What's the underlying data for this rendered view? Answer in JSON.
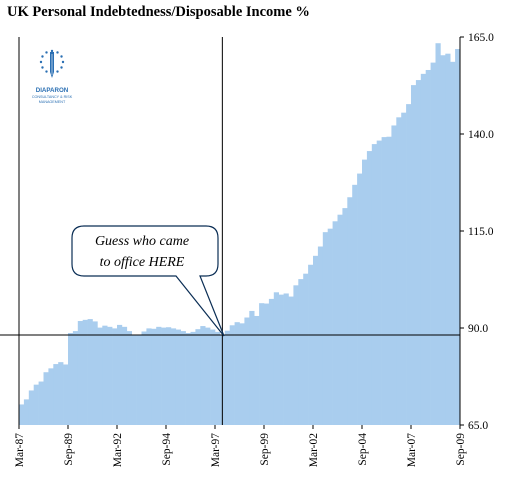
{
  "chart_data": {
    "type": "bar",
    "title": "UK Personal Indebtedness/Disposable Income %",
    "bar_color": "#a9cdee",
    "y_axis": {
      "side": "right",
      "ylim": [
        65.0,
        165.0
      ],
      "ticks": [
        "65.0",
        "90.0",
        "115.0",
        "140.0",
        "165.0"
      ]
    },
    "x_ticks": [
      "Mar-87",
      "Sep-89",
      "Mar-92",
      "Sep-94",
      "Mar-97",
      "Sep-99",
      "Mar-02",
      "Sep-04",
      "Mar-07",
      "Sep-09"
    ],
    "x": [
      "Mar-87",
      "Jun-87",
      "Sep-87",
      "Dec-87",
      "Mar-88",
      "Jun-88",
      "Sep-88",
      "Dec-88",
      "Mar-89",
      "Jun-89",
      "Sep-89",
      "Dec-89",
      "Mar-90",
      "Jun-90",
      "Sep-90",
      "Dec-90",
      "Mar-91",
      "Jun-91",
      "Sep-91",
      "Dec-91",
      "Mar-92",
      "Jun-92",
      "Sep-92",
      "Dec-92",
      "Mar-93",
      "Jun-93",
      "Sep-93",
      "Dec-93",
      "Mar-94",
      "Jun-94",
      "Sep-94",
      "Dec-94",
      "Mar-95",
      "Jun-95",
      "Sep-95",
      "Dec-95",
      "Mar-96",
      "Jun-96",
      "Sep-96",
      "Dec-96",
      "Mar-97",
      "Jun-97",
      "Sep-97",
      "Dec-97",
      "Mar-98",
      "Jun-98",
      "Sep-98",
      "Dec-98",
      "Mar-99",
      "Jun-99",
      "Sep-99",
      "Dec-99",
      "Mar-00",
      "Jun-00",
      "Sep-00",
      "Dec-00",
      "Mar-01",
      "Jun-01",
      "Sep-01",
      "Dec-01",
      "Mar-02",
      "Jun-02",
      "Sep-02",
      "Dec-02",
      "Mar-03",
      "Jun-03",
      "Sep-03",
      "Dec-03",
      "Mar-04",
      "Jun-04",
      "Sep-04",
      "Dec-04",
      "Mar-05",
      "Jun-05",
      "Sep-05",
      "Dec-05",
      "Mar-06",
      "Jun-06",
      "Sep-06",
      "Dec-06",
      "Mar-07",
      "Jun-07",
      "Sep-07",
      "Dec-07",
      "Mar-08",
      "Jun-08",
      "Sep-08",
      "Dec-08",
      "Mar-09",
      "Jun-09"
    ],
    "values": [
      70.3,
      71.6,
      73.9,
      75.4,
      76.2,
      78.6,
      79.6,
      80.7,
      81.2,
      80.6,
      88.7,
      89.2,
      91.8,
      92.1,
      92.3,
      91.7,
      90.1,
      90.6,
      90.3,
      89.9,
      90.8,
      90.3,
      89.2,
      88.3,
      88.2,
      89.1,
      89.9,
      89.8,
      90.3,
      90.1,
      90.2,
      89.9,
      89.6,
      89.2,
      88.7,
      89.0,
      89.7,
      90.5,
      90.1,
      89.6,
      89.0,
      88.2,
      89.3,
      90.7,
      91.5,
      91.2,
      92.7,
      94.4,
      93.1,
      96.4,
      96.3,
      97.5,
      99.2,
      98.6,
      98.9,
      98.1,
      101.0,
      102.6,
      104.0,
      106.3,
      108.6,
      111.0,
      114.7,
      115.6,
      117.5,
      119.2,
      120.9,
      123.7,
      126.9,
      129.8,
      133.4,
      135.6,
      137.4,
      138.3,
      139.2,
      139.3,
      142.2,
      144.3,
      145.5,
      147.7,
      152.6,
      153.9,
      155.5,
      156.5,
      158.4,
      163.4,
      160.3,
      160.7,
      158.6,
      161.9
    ],
    "reference_lines": {
      "vertical_at": "Jun-97",
      "horizontal_at": 88.2
    }
  },
  "annotation": {
    "line1": "Guess who came",
    "line2": "to office HERE"
  },
  "logo": {
    "name": "DIAPARON",
    "line2": "CONSULTANCY & RISK",
    "line3": "MANAGEMENT",
    "color": "#2a6fb3"
  }
}
